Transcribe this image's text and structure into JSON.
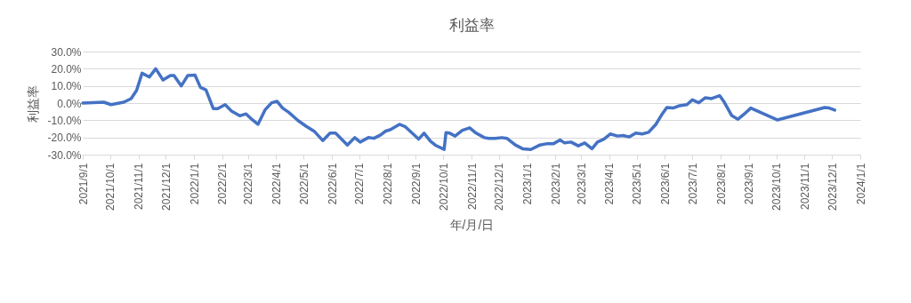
{
  "chart_data": {
    "type": "line",
    "title": "利益率",
    "xlabel": "年/月/日",
    "ylabel": "利益率",
    "grid": "y",
    "marker": "none",
    "line_style": "solid",
    "ylim": [
      -30,
      30
    ],
    "yticks": [
      {
        "value": -30,
        "label": "-30.0%"
      },
      {
        "value": -20,
        "label": "-20.0%"
      },
      {
        "value": -10,
        "label": "-10.0%"
      },
      {
        "value": 0,
        "label": "0.0%"
      },
      {
        "value": 10,
        "label": "10.0%"
      },
      {
        "value": 20,
        "label": "20.0%"
      },
      {
        "value": 30,
        "label": "30.0%"
      }
    ],
    "xlim": [
      "2021-09-01",
      "2024-01-01"
    ],
    "xticks": [
      {
        "value": "2021-09-01",
        "label": "2021/9/1"
      },
      {
        "value": "2021-10-01",
        "label": "2021/10/1"
      },
      {
        "value": "2021-11-01",
        "label": "2021/11/1"
      },
      {
        "value": "2021-12-01",
        "label": "2021/12/1"
      },
      {
        "value": "2022-01-01",
        "label": "2022/1/1"
      },
      {
        "value": "2022-02-01",
        "label": "2022/2/1"
      },
      {
        "value": "2022-03-01",
        "label": "2022/3/1"
      },
      {
        "value": "2022-04-01",
        "label": "2022/4/1"
      },
      {
        "value": "2022-05-01",
        "label": "2022/5/1"
      },
      {
        "value": "2022-06-01",
        "label": "2022/6/1"
      },
      {
        "value": "2022-07-01",
        "label": "2022/7/1"
      },
      {
        "value": "2022-08-01",
        "label": "2022/8/1"
      },
      {
        "value": "2022-09-01",
        "label": "2022/9/1"
      },
      {
        "value": "2022-10-01",
        "label": "2022/10/1"
      },
      {
        "value": "2022-11-01",
        "label": "2022/11/1"
      },
      {
        "value": "2022-12-01",
        "label": "2022/12/1"
      },
      {
        "value": "2023-01-01",
        "label": "2023/1/1"
      },
      {
        "value": "2023-02-01",
        "label": "2023/2/1"
      },
      {
        "value": "2023-03-01",
        "label": "2023/3/1"
      },
      {
        "value": "2023-04-01",
        "label": "2023/4/1"
      },
      {
        "value": "2023-05-01",
        "label": "2023/5/1"
      },
      {
        "value": "2023-06-01",
        "label": "2023/6/1"
      },
      {
        "value": "2023-07-01",
        "label": "2023/7/1"
      },
      {
        "value": "2023-08-01",
        "label": "2023/8/1"
      },
      {
        "value": "2023-09-01",
        "label": "2023/9/1"
      },
      {
        "value": "2023-10-01",
        "label": "2023/10/1"
      },
      {
        "value": "2023-11-01",
        "label": "2023/11/1"
      },
      {
        "value": "2023-12-01",
        "label": "2023/12/1"
      },
      {
        "value": "2024-01-01",
        "label": "2024/1/1"
      }
    ],
    "x": [
      "2021-09-01",
      "2021-09-24",
      "2021-10-02",
      "2021-10-16",
      "2021-10-24",
      "2021-10-30",
      "2021-11-05",
      "2021-11-13",
      "2021-11-20",
      "2021-11-28",
      "2021-12-06",
      "2021-12-10",
      "2021-12-18",
      "2021-12-25",
      "2022-01-02",
      "2022-01-08",
      "2022-01-14",
      "2022-01-22",
      "2022-01-27",
      "2022-02-04",
      "2022-02-11",
      "2022-02-20",
      "2022-02-27",
      "2022-03-06",
      "2022-03-12",
      "2022-03-20",
      "2022-03-27",
      "2022-04-02",
      "2022-04-08",
      "2022-04-15",
      "2022-04-25",
      "2022-05-04",
      "2022-05-13",
      "2022-05-22",
      "2022-05-30",
      "2022-06-05",
      "2022-06-18",
      "2022-06-26",
      "2022-07-02",
      "2022-07-11",
      "2022-07-17",
      "2022-07-24",
      "2022-07-30",
      "2022-08-04",
      "2022-08-14",
      "2022-08-20",
      "2022-08-29",
      "2022-09-04",
      "2022-09-10",
      "2022-09-17",
      "2022-09-23",
      "2022-10-02",
      "2022-10-04",
      "2022-10-08",
      "2022-10-14",
      "2022-10-22",
      "2022-10-30",
      "2022-11-06",
      "2022-11-15",
      "2022-11-20",
      "2022-11-27",
      "2022-12-04",
      "2022-12-10",
      "2022-12-19",
      "2022-12-27",
      "2023-01-05",
      "2023-01-15",
      "2023-01-23",
      "2023-01-30",
      "2023-02-06",
      "2023-02-11",
      "2023-02-18",
      "2023-02-26",
      "2023-03-05",
      "2023-03-13",
      "2023-03-19",
      "2023-03-26",
      "2023-04-02",
      "2023-04-10",
      "2023-04-16",
      "2023-04-23",
      "2023-04-30",
      "2023-05-07",
      "2023-05-14",
      "2023-05-22",
      "2023-05-29",
      "2023-06-03",
      "2023-06-10",
      "2023-06-17",
      "2023-06-25",
      "2023-07-01",
      "2023-07-08",
      "2023-07-15",
      "2023-07-22",
      "2023-07-31",
      "2023-08-05",
      "2023-08-13",
      "2023-08-20",
      "2023-08-27",
      "2023-09-03",
      "2023-10-02",
      "2023-11-23",
      "2023-11-28",
      "2023-12-04"
    ],
    "series": [
      {
        "color": "#4472c4",
        "values": [
          0,
          0.5,
          -0.9,
          0.5,
          2.6,
          7.4,
          17.4,
          15.1,
          20,
          13.4,
          16,
          16,
          10,
          16,
          16.3,
          9.1,
          7.7,
          -3.2,
          -3.2,
          -0.9,
          -4.6,
          -7.4,
          -6.3,
          -9.8,
          -12.4,
          -3.8,
          0.2,
          1,
          -2.9,
          -5.5,
          -10.2,
          -13.6,
          -16.6,
          -21.8,
          -17.5,
          -17.5,
          -24.4,
          -20.1,
          -22.7,
          -20.1,
          -20.5,
          -18.7,
          -16.3,
          -15.5,
          -12.4,
          -13.6,
          -18,
          -21,
          -17.5,
          -22.2,
          -24.7,
          -27,
          -17.2,
          -17.5,
          -19.2,
          -15.8,
          -14.4,
          -17.5,
          -20.1,
          -20.6,
          -20.6,
          -20.1,
          -20.6,
          -24.4,
          -26.6,
          -27,
          -24.4,
          -23.6,
          -23.6,
          -21.5,
          -23.2,
          -22.7,
          -24.9,
          -23.2,
          -26.6,
          -22.7,
          -21,
          -18,
          -19.2,
          -18.9,
          -19.7,
          -17.5,
          -18,
          -17,
          -12.4,
          -6.3,
          -2.6,
          -2.9,
          -1.5,
          -0.9,
          1.9,
          0.2,
          3.1,
          2.6,
          4.3,
          0.5,
          -7.2,
          -9.4,
          -6.3,
          -2.9,
          -9.8,
          -2.6,
          -2.9,
          -4.1
        ]
      }
    ]
  }
}
